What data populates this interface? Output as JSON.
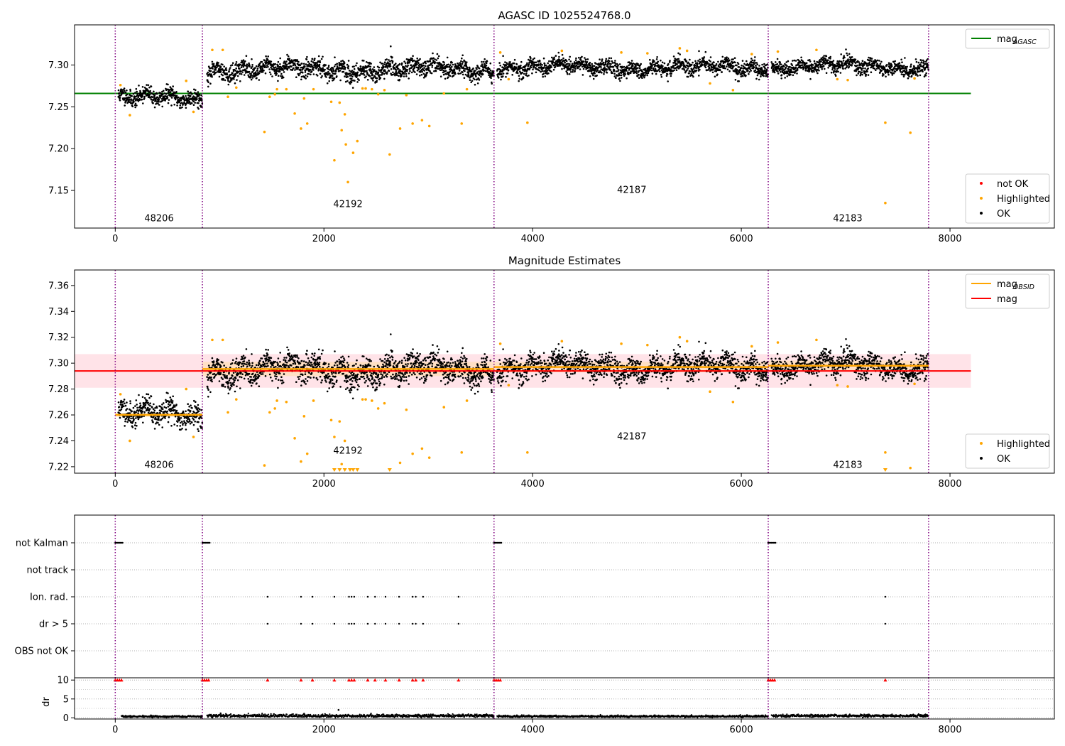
{
  "figure": {
    "colors": {
      "ok": "#000000",
      "highlighted": "#ffa500",
      "not_ok": "#ff0000",
      "agasc_line": "#008000",
      "mag_line": "#ff0000",
      "obsid_line": "#ffa500",
      "mag_band": "#ffc0cb",
      "obsid_band": "#ffdead",
      "obsid_boundary": "#800080",
      "band_line_dr": "#000000"
    }
  },
  "chart_data": [
    {
      "id": "agasc",
      "type": "scatter",
      "title": "AGASC ID 1025524768.0",
      "xlabel": "",
      "ylabel": "",
      "xlim": [
        -390,
        9000
      ],
      "ylim": [
        7.105,
        7.348
      ],
      "xticks": [
        0,
        2000,
        4000,
        6000,
        8000
      ],
      "yticks": [
        7.15,
        7.2,
        7.25,
        7.3
      ],
      "ytick_labels": [
        "7.15",
        "7.20",
        "7.25",
        "7.30"
      ],
      "obsid_boundaries": [
        0,
        835,
        3630,
        6258,
        7795
      ],
      "obsid_labels": [
        {
          "text": "48206",
          "x": 420,
          "y": 7.113
        },
        {
          "text": "42192",
          "x": 2230,
          "y": 7.13
        },
        {
          "text": "42187",
          "x": 4950,
          "y": 7.147
        },
        {
          "text": "42183",
          "x": 7020,
          "y": 7.113
        }
      ],
      "hlines": [
        {
          "name": "mag_AGASC",
          "y": 7.266,
          "x": [
            -390,
            8200
          ],
          "color": "#008000"
        }
      ],
      "segments": [
        {
          "x0": 30,
          "x1": 835,
          "mean": 7.26,
          "sd": 0.0065
        },
        {
          "x0": 880,
          "x1": 3630,
          "mean": 7.295,
          "sd": 0.007
        },
        {
          "x0": 3660,
          "x1": 6258,
          "mean": 7.297,
          "sd": 0.006
        },
        {
          "x0": 6290,
          "x1": 7795,
          "mean": 7.298,
          "sd": 0.006
        }
      ],
      "highlighted": [
        {
          "x": 50,
          "y": 7.276
        },
        {
          "x": 140,
          "y": 7.24
        },
        {
          "x": 680,
          "y": 7.281
        },
        {
          "x": 750,
          "y": 7.244
        },
        {
          "x": 930,
          "y": 7.318
        },
        {
          "x": 1030,
          "y": 7.318
        },
        {
          "x": 1080,
          "y": 7.262
        },
        {
          "x": 1160,
          "y": 7.273
        },
        {
          "x": 1430,
          "y": 7.22
        },
        {
          "x": 1480,
          "y": 7.262
        },
        {
          "x": 1530,
          "y": 7.265
        },
        {
          "x": 1550,
          "y": 7.271
        },
        {
          "x": 1640,
          "y": 7.271
        },
        {
          "x": 1720,
          "y": 7.242
        },
        {
          "x": 1780,
          "y": 7.224
        },
        {
          "x": 1810,
          "y": 7.26
        },
        {
          "x": 1840,
          "y": 7.23
        },
        {
          "x": 1900,
          "y": 7.271
        },
        {
          "x": 2070,
          "y": 7.256
        },
        {
          "x": 2100,
          "y": 7.186
        },
        {
          "x": 2150,
          "y": 7.255
        },
        {
          "x": 2170,
          "y": 7.222
        },
        {
          "x": 2200,
          "y": 7.241
        },
        {
          "x": 2210,
          "y": 7.205
        },
        {
          "x": 2230,
          "y": 7.16
        },
        {
          "x": 2280,
          "y": 7.195
        },
        {
          "x": 2320,
          "y": 7.209
        },
        {
          "x": 2370,
          "y": 7.272
        },
        {
          "x": 2400,
          "y": 7.272
        },
        {
          "x": 2460,
          "y": 7.271
        },
        {
          "x": 2520,
          "y": 7.265
        },
        {
          "x": 2580,
          "y": 7.27
        },
        {
          "x": 2630,
          "y": 7.193
        },
        {
          "x": 2730,
          "y": 7.224
        },
        {
          "x": 2790,
          "y": 7.264
        },
        {
          "x": 2850,
          "y": 7.23
        },
        {
          "x": 2940,
          "y": 7.234
        },
        {
          "x": 3010,
          "y": 7.227
        },
        {
          "x": 3150,
          "y": 7.266
        },
        {
          "x": 3320,
          "y": 7.23
        },
        {
          "x": 3370,
          "y": 7.271
        },
        {
          "x": 3690,
          "y": 7.315
        },
        {
          "x": 3770,
          "y": 7.283
        },
        {
          "x": 3950,
          "y": 7.231
        },
        {
          "x": 4280,
          "y": 7.317
        },
        {
          "x": 4850,
          "y": 7.315
        },
        {
          "x": 5100,
          "y": 7.314
        },
        {
          "x": 5410,
          "y": 7.32
        },
        {
          "x": 5480,
          "y": 7.317
        },
        {
          "x": 5700,
          "y": 7.278
        },
        {
          "x": 5920,
          "y": 7.27
        },
        {
          "x": 6100,
          "y": 7.313
        },
        {
          "x": 6350,
          "y": 7.316
        },
        {
          "x": 6720,
          "y": 7.318
        },
        {
          "x": 6920,
          "y": 7.283
        },
        {
          "x": 7020,
          "y": 7.282
        },
        {
          "x": 7380,
          "y": 7.231
        },
        {
          "x": 7380,
          "y": 7.135
        },
        {
          "x": 7620,
          "y": 7.219
        },
        {
          "x": 7660,
          "y": 7.284
        }
      ],
      "not_ok": [],
      "legend": [
        {
          "position": "upper right",
          "entries": [
            {
              "label": "mag",
              "sub": "AGASC",
              "kind": "line",
              "color": "#008000"
            }
          ]
        },
        {
          "position": "lower right",
          "entries": [
            {
              "label": "not OK",
              "kind": "dot",
              "color": "#ff0000"
            },
            {
              "label": "Highlighted",
              "kind": "dot",
              "color": "#ffa500"
            },
            {
              "label": "OK",
              "kind": "dot",
              "color": "#000000"
            }
          ]
        }
      ]
    },
    {
      "id": "estimates",
      "type": "scatter",
      "title": "Magnitude Estimates",
      "xlabel": "",
      "ylabel": "",
      "xlim": [
        -390,
        9000
      ],
      "ylim": [
        7.215,
        7.372
      ],
      "xticks": [
        0,
        2000,
        4000,
        6000,
        8000
      ],
      "yticks": [
        7.22,
        7.24,
        7.26,
        7.28,
        7.3,
        7.32,
        7.34,
        7.36
      ],
      "ytick_labels": [
        "7.22",
        "7.24",
        "7.26",
        "7.28",
        "7.30",
        "7.32",
        "7.34",
        "7.36"
      ],
      "obsid_boundaries": [
        0,
        835,
        3630,
        6258,
        7795
      ],
      "obsid_labels": [
        {
          "text": "48206",
          "x": 420,
          "y": 7.219
        },
        {
          "text": "42192",
          "x": 2230,
          "y": 7.23
        },
        {
          "text": "42187",
          "x": 4950,
          "y": 7.241
        },
        {
          "text": "42183",
          "x": 7020,
          "y": 7.219
        }
      ],
      "mag": {
        "value": 7.294,
        "band": [
          7.281,
          7.307
        ],
        "x": [
          -390,
          8200
        ]
      },
      "obsid_means": [
        {
          "x0": 0,
          "x1": 835,
          "value": 7.26,
          "band": [
            7.2585,
            7.2615
          ]
        },
        {
          "x0": 835,
          "x1": 3630,
          "value": 7.2955,
          "band": [
            7.29,
            7.301
          ]
        },
        {
          "x0": 3630,
          "x1": 6258,
          "value": 7.297,
          "band": [
            7.293,
            7.301
          ]
        },
        {
          "x0": 6258,
          "x1": 7795,
          "value": 7.298,
          "band": [
            7.294,
            7.302
          ]
        }
      ],
      "segments": [
        {
          "x0": 30,
          "x1": 835,
          "mean": 7.26,
          "sd": 0.0065
        },
        {
          "x0": 880,
          "x1": 3630,
          "mean": 7.295,
          "sd": 0.007
        },
        {
          "x0": 3660,
          "x1": 6258,
          "mean": 7.297,
          "sd": 0.006
        },
        {
          "x0": 6290,
          "x1": 7795,
          "mean": 7.298,
          "sd": 0.006
        }
      ],
      "highlighted": [
        {
          "x": 50,
          "y": 7.276
        },
        {
          "x": 140,
          "y": 7.24
        },
        {
          "x": 680,
          "y": 7.28
        },
        {
          "x": 750,
          "y": 7.243
        },
        {
          "x": 930,
          "y": 7.318
        },
        {
          "x": 1030,
          "y": 7.318
        },
        {
          "x": 1080,
          "y": 7.262
        },
        {
          "x": 1160,
          "y": 7.272
        },
        {
          "x": 1430,
          "y": 7.221
        },
        {
          "x": 1480,
          "y": 7.262
        },
        {
          "x": 1530,
          "y": 7.265
        },
        {
          "x": 1550,
          "y": 7.271
        },
        {
          "x": 1640,
          "y": 7.27
        },
        {
          "x": 1720,
          "y": 7.242
        },
        {
          "x": 1780,
          "y": 7.224
        },
        {
          "x": 1810,
          "y": 7.259
        },
        {
          "x": 1840,
          "y": 7.23
        },
        {
          "x": 1900,
          "y": 7.271
        },
        {
          "x": 2070,
          "y": 7.256
        },
        {
          "x": 2100,
          "y": 7.243
        },
        {
          "x": 2150,
          "y": 7.255
        },
        {
          "x": 2170,
          "y": 7.222
        },
        {
          "x": 2200,
          "y": 7.24
        },
        {
          "x": 2370,
          "y": 7.272
        },
        {
          "x": 2400,
          "y": 7.272
        },
        {
          "x": 2460,
          "y": 7.271
        },
        {
          "x": 2520,
          "y": 7.265
        },
        {
          "x": 2580,
          "y": 7.269
        },
        {
          "x": 2730,
          "y": 7.223
        },
        {
          "x": 2790,
          "y": 7.264
        },
        {
          "x": 2850,
          "y": 7.23
        },
        {
          "x": 2940,
          "y": 7.234
        },
        {
          "x": 3010,
          "y": 7.227
        },
        {
          "x": 3150,
          "y": 7.266
        },
        {
          "x": 3320,
          "y": 7.231
        },
        {
          "x": 3370,
          "y": 7.271
        },
        {
          "x": 3690,
          "y": 7.315
        },
        {
          "x": 3770,
          "y": 7.283
        },
        {
          "x": 3950,
          "y": 7.231
        },
        {
          "x": 4280,
          "y": 7.317
        },
        {
          "x": 4850,
          "y": 7.315
        },
        {
          "x": 5100,
          "y": 7.314
        },
        {
          "x": 5410,
          "y": 7.32
        },
        {
          "x": 5480,
          "y": 7.317
        },
        {
          "x": 5700,
          "y": 7.278
        },
        {
          "x": 5920,
          "y": 7.27
        },
        {
          "x": 6100,
          "y": 7.313
        },
        {
          "x": 6350,
          "y": 7.316
        },
        {
          "x": 6720,
          "y": 7.318
        },
        {
          "x": 6920,
          "y": 7.283
        },
        {
          "x": 7020,
          "y": 7.282
        },
        {
          "x": 7380,
          "y": 7.231
        },
        {
          "x": 7620,
          "y": 7.219
        },
        {
          "x": 7660,
          "y": 7.284
        }
      ],
      "below_limit_markers": [
        2100,
        2150,
        2200,
        2250,
        2280,
        2320,
        2630,
        7380
      ],
      "legend": [
        {
          "position": "upper right",
          "entries": [
            {
              "label": "mag",
              "sub": "OBSID",
              "kind": "line",
              "color": "#ffa500"
            },
            {
              "label": "mag",
              "kind": "line",
              "color": "#ff0000"
            }
          ]
        },
        {
          "position": "lower right",
          "entries": [
            {
              "label": "Highlighted",
              "kind": "dot",
              "color": "#ffa500"
            },
            {
              "label": "OK",
              "kind": "dot",
              "color": "#000000"
            }
          ]
        }
      ]
    },
    {
      "id": "flags",
      "type": "scatter",
      "title": "",
      "xlabel": "",
      "ylabel": "",
      "xlim": [
        -390,
        9000
      ],
      "xticks": [
        0,
        2000,
        4000,
        6000,
        8000
      ],
      "categories": [
        "not Kalman",
        "not track",
        "Ion. rad.",
        "dr > 5",
        "OBS not OK"
      ],
      "obsid_boundaries": [
        0,
        835,
        3630,
        6258,
        7795
      ],
      "not_kalman_ranges": [
        [
          0,
          70
        ],
        [
          835,
          905
        ],
        [
          3630,
          3700
        ],
        [
          6258,
          6328
        ]
      ],
      "ion_rad_x": [
        1460,
        1780,
        1890,
        2100,
        2240,
        2265,
        2290,
        2420,
        2490,
        2590,
        2720,
        2850,
        2880,
        2950,
        3290,
        7380
      ],
      "dr_gt5_x": [
        1460,
        1780,
        1890,
        2100,
        2240,
        2265,
        2290,
        2420,
        2490,
        2590,
        2720,
        2850,
        2880,
        2950,
        3290,
        7380
      ]
    },
    {
      "id": "dr",
      "type": "scatter",
      "title": "",
      "xlabel": "",
      "ylabel": "dr",
      "xlim": [
        -390,
        9000
      ],
      "ylim": [
        -0.3,
        10.6
      ],
      "xticks": [
        0,
        2000,
        4000,
        6000,
        8000
      ],
      "yticks": [
        0,
        5,
        10
      ],
      "ytick_labels": [
        "0",
        "5",
        "10"
      ],
      "obsid_boundaries": [
        0,
        835,
        3630,
        6258,
        7795
      ],
      "clipped_value": 10,
      "clipped_x": [
        0,
        20,
        40,
        60,
        835,
        855,
        875,
        895,
        3630,
        3650,
        3670,
        3690,
        6258,
        6278,
        6298,
        6318,
        1460,
        1780,
        1890,
        2100,
        2240,
        2265,
        2290,
        2420,
        2490,
        2590,
        2720,
        2850,
        2880,
        2950,
        3290,
        7380
      ],
      "outliers": [
        {
          "x": 2140,
          "y": 2.1
        },
        {
          "x": 1010,
          "y": 1.2
        },
        {
          "x": 1810,
          "y": 1.1
        }
      ],
      "segments": [
        {
          "x0": 60,
          "x1": 835,
          "mean": 0.35,
          "sd": 0.12
        },
        {
          "x0": 880,
          "x1": 3630,
          "mean": 0.55,
          "sd": 0.2
        },
        {
          "x0": 3660,
          "x1": 6258,
          "mean": 0.4,
          "sd": 0.14
        },
        {
          "x0": 6290,
          "x1": 7795,
          "mean": 0.55,
          "sd": 0.18
        }
      ]
    }
  ]
}
